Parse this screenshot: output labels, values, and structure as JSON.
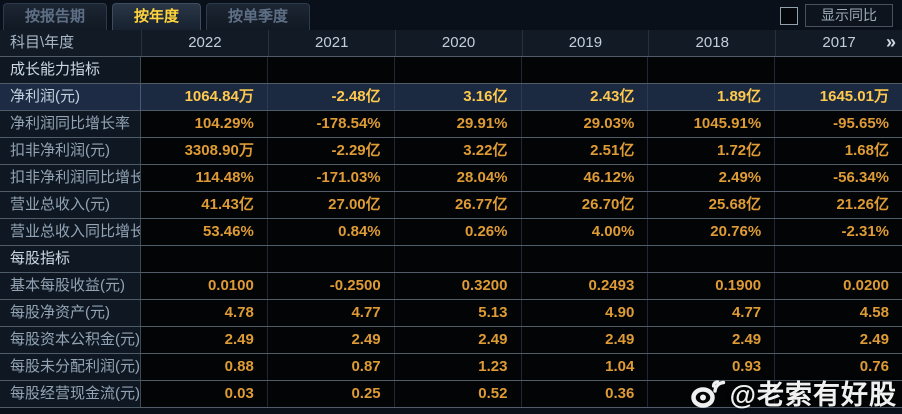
{
  "tabs": [
    {
      "label": "按报告期",
      "active": false
    },
    {
      "label": "按年度",
      "active": true
    },
    {
      "label": "按单季度",
      "active": false
    }
  ],
  "controls": {
    "show_yoy_label": "显示同比",
    "checkbox_checked": false
  },
  "table": {
    "corner_header": "科目\\年度",
    "year_columns": [
      "2022",
      "2021",
      "2020",
      "2019",
      "2018",
      "2017"
    ],
    "more_icon": "»",
    "rows": [
      {
        "type": "section",
        "label": "成长能力指标"
      },
      {
        "type": "data",
        "label": "净利润(元)",
        "highlight": true,
        "values": [
          "1064.84万",
          "-2.48亿",
          "3.16亿",
          "2.43亿",
          "1.89亿",
          "1645.01万"
        ]
      },
      {
        "type": "data",
        "label": "净利润同比增长率",
        "values": [
          "104.29%",
          "-178.54%",
          "29.91%",
          "29.03%",
          "1045.91%",
          "-95.65%"
        ]
      },
      {
        "type": "data",
        "label": "扣非净利润(元)",
        "values": [
          "3308.90万",
          "-2.29亿",
          "3.22亿",
          "2.51亿",
          "1.72亿",
          "1.68亿"
        ]
      },
      {
        "type": "data",
        "label": "扣非净利润同比增长率",
        "values": [
          "114.48%",
          "-171.03%",
          "28.04%",
          "46.12%",
          "2.49%",
          "-56.34%"
        ]
      },
      {
        "type": "data",
        "label": "营业总收入(元)",
        "values": [
          "41.43亿",
          "27.00亿",
          "26.77亿",
          "26.70亿",
          "25.68亿",
          "21.26亿"
        ]
      },
      {
        "type": "data",
        "label": "营业总收入同比增长率",
        "values": [
          "53.46%",
          "0.84%",
          "0.26%",
          "4.00%",
          "20.76%",
          "-2.31%"
        ]
      },
      {
        "type": "section",
        "label": "每股指标"
      },
      {
        "type": "data",
        "label": "基本每股收益(元)",
        "values": [
          "0.0100",
          "-0.2500",
          "0.3200",
          "0.2493",
          "0.1900",
          "0.0200"
        ]
      },
      {
        "type": "data",
        "label": "每股净资产(元)",
        "values": [
          "4.78",
          "4.77",
          "5.13",
          "4.90",
          "4.77",
          "4.58"
        ]
      },
      {
        "type": "data",
        "label": "每股资本公积金(元)",
        "values": [
          "2.49",
          "2.49",
          "2.49",
          "2.49",
          "2.49",
          "2.49"
        ]
      },
      {
        "type": "data",
        "label": "每股未分配利润(元)",
        "values": [
          "0.88",
          "0.87",
          "1.23",
          "1.04",
          "0.93",
          "0.76"
        ]
      },
      {
        "type": "data",
        "label": "每股经营现金流(元)",
        "values": [
          "0.03",
          "0.25",
          "0.52",
          "0.36",
          "",
          ""
        ]
      }
    ]
  },
  "watermark": {
    "text": "@老索有好股"
  },
  "colors": {
    "tab_active_text": "#ffd43c",
    "value_orange": "#de9b36",
    "highlight_value_gold": "#ffc94e",
    "highlight_row_bg": "#1b2941",
    "label_text": "#92a4b4",
    "header_text": "#c2ceda"
  }
}
